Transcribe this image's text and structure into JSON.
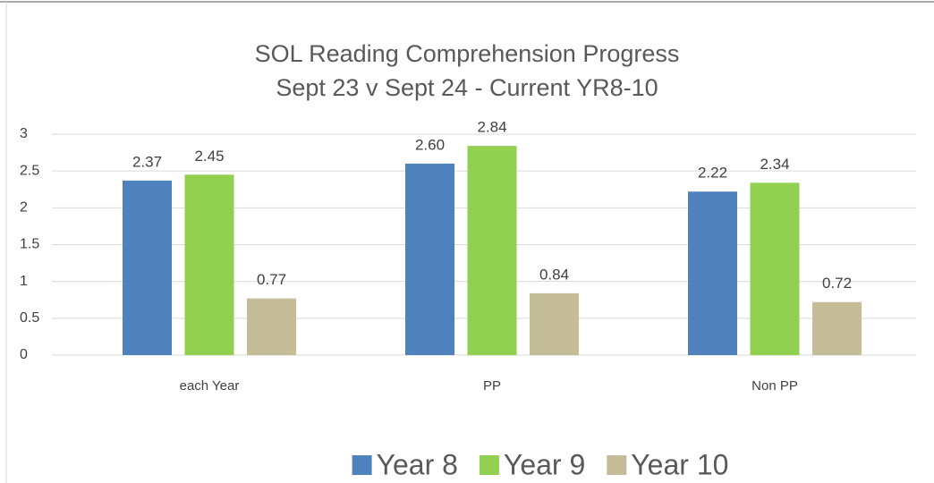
{
  "chart_data": {
    "type": "bar",
    "title": "SOL Reading Comprehension Progress",
    "subtitle": "Sept 23 v Sept 24 - Current YR8-10",
    "categories": [
      "each Year",
      "PP",
      "Non PP"
    ],
    "series": [
      {
        "name": "Year 8",
        "color": "#4f81bd",
        "values": [
          2.37,
          2.6,
          2.22
        ],
        "value_labels": [
          "2.37",
          "2.60",
          "2.22"
        ]
      },
      {
        "name": "Year 9",
        "color": "#92d050",
        "values": [
          2.45,
          2.84,
          2.34
        ],
        "value_labels": [
          "2.45",
          "2.84",
          "2.34"
        ]
      },
      {
        "name": "Year 10",
        "color": "#c4bd97",
        "values": [
          0.77,
          0.84,
          0.72
        ],
        "value_labels": [
          "0.77",
          "0.84",
          "0.72"
        ]
      }
    ],
    "ylim": [
      0,
      3
    ],
    "yticks": [
      0,
      0.5,
      1,
      1.5,
      2,
      2.5,
      3
    ],
    "grid": true,
    "legend": "bottom"
  }
}
